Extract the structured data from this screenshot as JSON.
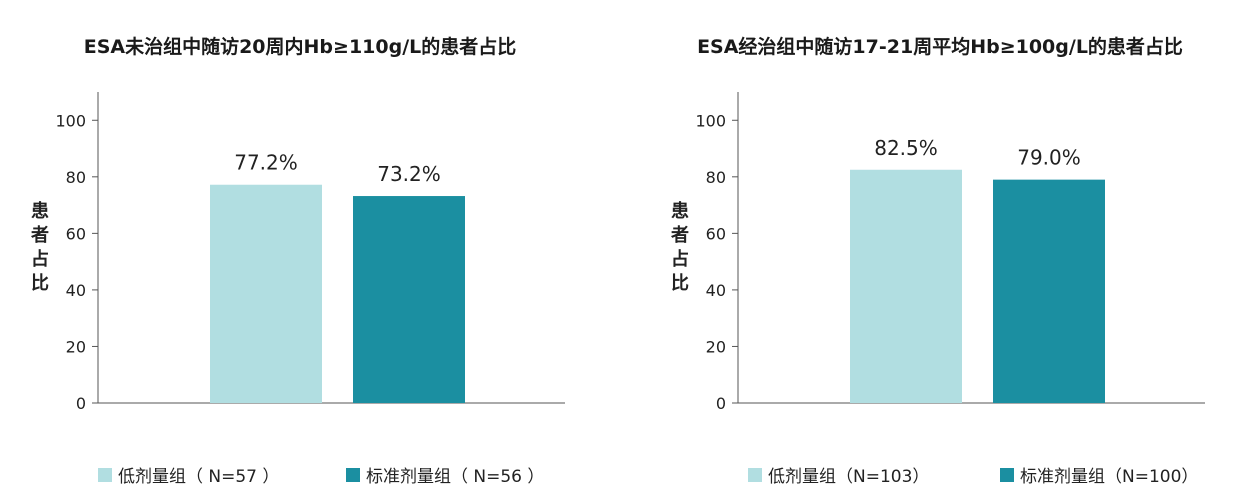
{
  "chart_data": [
    {
      "type": "bar",
      "title": "ESA未治组中随访20周内Hb≥110g/L的患者占比",
      "ylabel": "患者占比",
      "ylim": [
        0,
        110
      ],
      "yticks": [
        0,
        20,
        40,
        60,
        80,
        100
      ],
      "categories": [
        "低剂量组（ N=57 ）",
        "标准剂量组（ N=56 ）"
      ],
      "values": [
        77.2,
        73.2
      ],
      "value_labels": [
        "77.2%",
        "73.2%"
      ],
      "colors": [
        "#b1dee1",
        "#1b8fa1"
      ],
      "grid": false,
      "legend_position": "bottom"
    },
    {
      "type": "bar",
      "title": "ESA经治组中随访17-21周平均Hb≥100g/L的患者占比",
      "ylabel": "患者占比",
      "ylim": [
        0,
        110
      ],
      "yticks": [
        0,
        20,
        40,
        60,
        80,
        100
      ],
      "categories": [
        "低剂量组（N=103）",
        "标准剂量组（N=100）"
      ],
      "values": [
        82.5,
        79.0
      ],
      "value_labels": [
        "82.5%",
        "79.0%"
      ],
      "colors": [
        "#b1dee1",
        "#1b8fa1"
      ],
      "grid": false,
      "legend_position": "bottom"
    }
  ]
}
